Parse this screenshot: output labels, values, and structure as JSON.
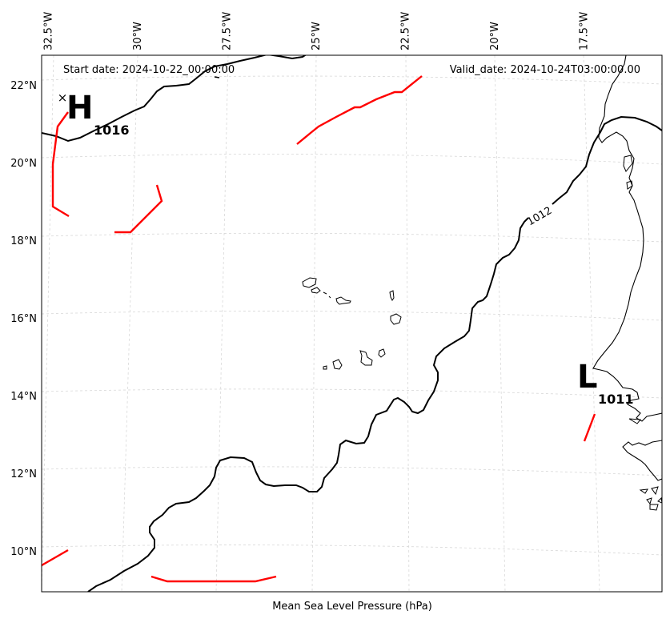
{
  "header": {
    "start_date": "Start date: 2024-10-22_00:00:00",
    "valid_date": "Valid_date: 2024-10-24T03:00:00.00"
  },
  "caption": "Mean Sea Level Pressure (hPa)",
  "map": {
    "lon_ticks": [
      {
        "lon": -32.5,
        "label": "32.5°W"
      },
      {
        "lon": -30,
        "label": "30°W"
      },
      {
        "lon": -27.5,
        "label": "27.5°W"
      },
      {
        "lon": -25,
        "label": "25°W"
      },
      {
        "lon": -22.5,
        "label": "22.5°W"
      },
      {
        "lon": -20,
        "label": "20°W"
      },
      {
        "lon": -17.5,
        "label": "17.5°W"
      }
    ],
    "lat_ticks": [
      {
        "lat": 22,
        "label": "22°N"
      },
      {
        "lat": 20,
        "label": "20°N"
      },
      {
        "lat": 18,
        "label": "18°N"
      },
      {
        "lat": 16,
        "label": "16°N"
      },
      {
        "lat": 14,
        "label": "14°N"
      },
      {
        "lat": 12,
        "label": "12°N"
      },
      {
        "lat": 10,
        "label": "10°N"
      }
    ],
    "grid": true,
    "contour_label": "1012",
    "high": {
      "letter": "H",
      "value": "1016",
      "marker": "×"
    },
    "low": {
      "letter": "L",
      "value": "1011"
    },
    "colors": {
      "isobar": "#000000",
      "trough": "#ff0000",
      "coast": "#000000",
      "grid": "#cccccc"
    }
  }
}
